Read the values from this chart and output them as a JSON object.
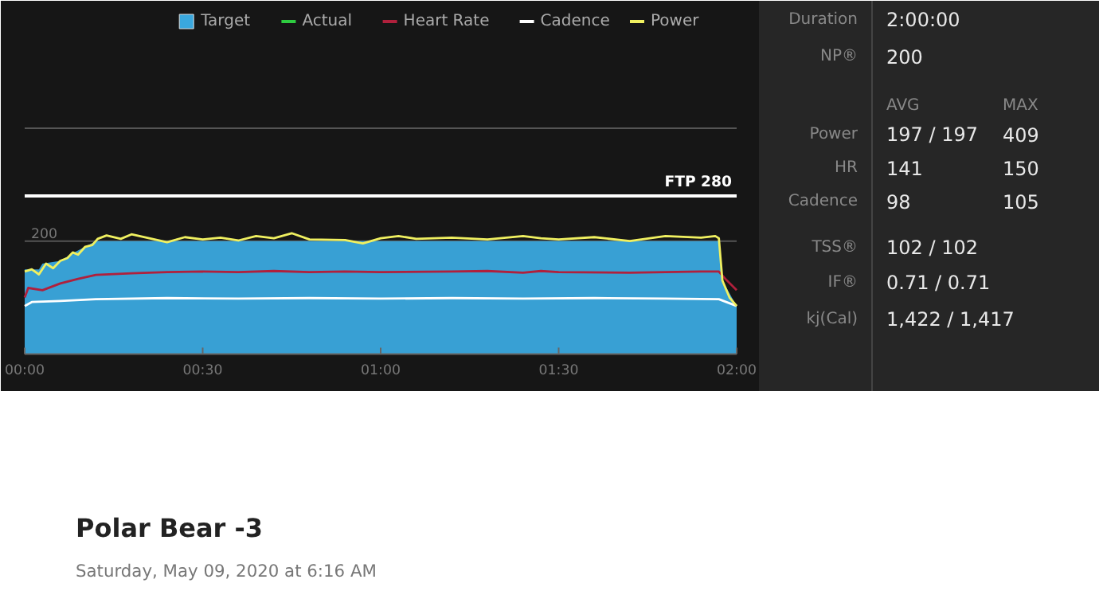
{
  "chart_data": [
    {
      "type": "line",
      "legend": "top right",
      "grid": "y",
      "xlim": [
        0,
        2
      ],
      "ylim": [
        0,
        400
      ],
      "xticks": [
        {
          "value": 0,
          "label": "00:00"
        },
        {
          "value": 0.5,
          "label": "00:30"
        },
        {
          "value": 1,
          "label": "01:00"
        },
        {
          "value": 1.5,
          "label": "01:30"
        },
        {
          "value": 2,
          "label": "02:00"
        }
      ],
      "yticks": [
        200,
        {
          "value": 400,
          "label": null
        }
      ],
      "ref_lines": [
        {
          "axis": "y",
          "value": 280,
          "label": "FTP 280",
          "color": "#ffffff"
        }
      ],
      "series": [
        {
          "name": "Target",
          "type": "area",
          "color": "#3aa8de",
          "x": [
            0,
            0.04,
            0.05,
            0.1,
            0.14,
            0.2,
            1.95,
            1.96,
            2.0
          ],
          "values": [
            150,
            150,
            160,
            165,
            180,
            200,
            200,
            130,
            85
          ]
        },
        {
          "name": "Actual",
          "color": "#2ecc40"
        },
        {
          "name": "Heart Rate",
          "color": "#b0203c",
          "x": [
            0,
            0.01,
            0.05,
            0.1,
            0.15,
            0.2,
            0.3,
            0.4,
            0.5,
            0.6,
            0.7,
            0.8,
            0.9,
            1.0,
            1.2,
            1.3,
            1.4,
            1.45,
            1.5,
            1.7,
            1.9,
            1.95,
            1.97,
            2.0
          ],
          "values": [
            100,
            117,
            113,
            125,
            133,
            140,
            143,
            145,
            146,
            145,
            147,
            145,
            146,
            145,
            146,
            147,
            144,
            147,
            145,
            144,
            146,
            146,
            132,
            113
          ]
        },
        {
          "name": "Cadence",
          "color": "#ffffff",
          "x": [
            0,
            0.02,
            0.1,
            0.2,
            0.4,
            0.6,
            0.8,
            1.0,
            1.2,
            1.4,
            1.6,
            1.8,
            1.95,
            2.0
          ],
          "values": [
            85,
            92,
            94,
            97,
            99,
            98,
            99,
            98,
            99,
            98,
            99,
            98,
            97,
            85
          ]
        },
        {
          "name": "Power",
          "color": "#f0f060",
          "x": [
            0,
            0.02,
            0.04,
            0.06,
            0.08,
            0.1,
            0.12,
            0.135,
            0.15,
            0.17,
            0.19,
            0.205,
            0.23,
            0.27,
            0.3,
            0.35,
            0.4,
            0.45,
            0.5,
            0.55,
            0.6,
            0.65,
            0.7,
            0.75,
            0.8,
            0.9,
            0.95,
            1.0,
            1.05,
            1.1,
            1.2,
            1.3,
            1.4,
            1.45,
            1.5,
            1.6,
            1.7,
            1.8,
            1.9,
            1.94,
            1.95,
            1.96,
            1.98,
            2.0
          ],
          "values": [
            146,
            150,
            141,
            160,
            152,
            165,
            170,
            180,
            176,
            190,
            193,
            204,
            210,
            204,
            212,
            205,
            198,
            207,
            203,
            206,
            201,
            209,
            205,
            214,
            203,
            202,
            196,
            205,
            209,
            204,
            206,
            203,
            209,
            205,
            203,
            207,
            200,
            209,
            206,
            209,
            205,
            130,
            100,
            85
          ]
        }
      ]
    },
    {
      "type": "other",
      "annotations": [
        "Duration",
        "2:00:00",
        "NP®",
        "200",
        "AVG",
        "MAX",
        "Power",
        "197 / 197",
        "409",
        "HR",
        "141",
        "150",
        "Cadence",
        "98",
        "105",
        "TSS®",
        "102 / 102",
        "IF®",
        "0.71 / 0.71",
        "kj(Cal)",
        "1,422 / 1,417"
      ]
    },
    {
      "type": "other",
      "title": "Polar Bear -3",
      "subtitle": "Saturday, May 09, 2020 at 6:16 AM"
    }
  ]
}
